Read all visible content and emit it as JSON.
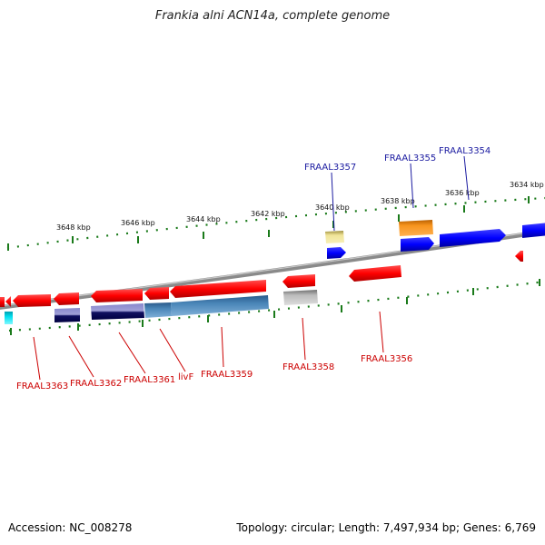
{
  "title": "Frankia alni ACN14a, complete genome",
  "footer": {
    "accession": "Accession: NC_008278",
    "summary": "Topology: circular; Length: 7,497,934 bp; Genes: 6,769"
  },
  "colors": {
    "forward": "#ff0000",
    "reverse": "#0000ff",
    "orange": "#f7941d",
    "khaki": "#e8dc8a",
    "gray": "#aaaaaa",
    "steel": "#4a86b8",
    "navy": "#101060",
    "periwinkle": "#8080c0",
    "cyan": "#00e0f0",
    "tick": "#1a7a1a",
    "backbone": "#808080",
    "label_top": "#1a1aa0",
    "label_bottom": "#cc0000"
  },
  "scale_labels": [
    "3648 kbp",
    "3646 kbp",
    "3644 kbp",
    "3642 kbp",
    "3640 kbp",
    "3638 kbp",
    "3636 kbp",
    "3634 kbp"
  ],
  "gene_labels_top": [
    "FRAAL3357",
    "FRAAL3355",
    "FRAAL3354"
  ],
  "gene_labels_bottom": [
    "FRAAL3363",
    "FRAAL3362",
    "FRAAL3361",
    "livF",
    "FRAAL3359",
    "FRAAL3358",
    "FRAAL3356"
  ]
}
